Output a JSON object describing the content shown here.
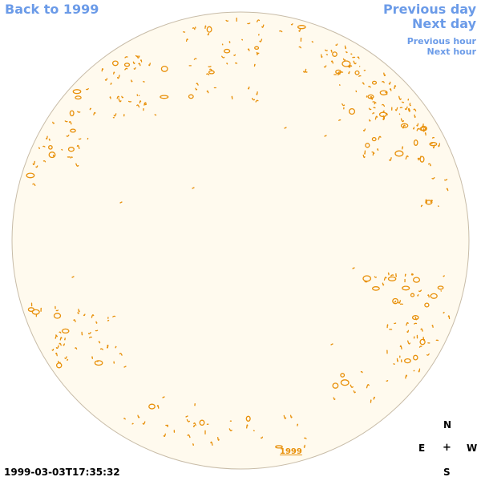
{
  "nav": {
    "back": "Back to 1999",
    "previous_day": "Previous day",
    "next_day": "Next day",
    "previous_hour": "Previous hour",
    "next_hour": "Next hour"
  },
  "compass": {
    "north": "N",
    "east": "E",
    "center": "+",
    "west": "W",
    "south": "S"
  },
  "timestamp": "1999-03-03T17:35:32",
  "year_link": "1999",
  "colors": {
    "disk_fill": "#fffaee",
    "disk_edge": "#c8bca8",
    "feature": "#e8900a",
    "link": "#6b9be8"
  }
}
